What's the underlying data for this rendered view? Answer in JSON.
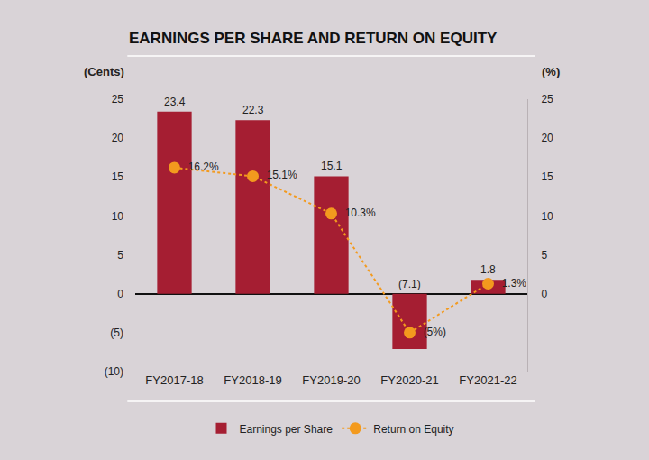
{
  "chart_data": {
    "type": "bar",
    "title": "EARNINGS PER SHARE AND RETURN ON EQUITY",
    "y_label": "(Cents)",
    "y2_label": "(%)",
    "categories": [
      "FY2017-18",
      "FY2018-19",
      "FY2019-20",
      "FY2020-21",
      "FY2021-22"
    ],
    "series": [
      {
        "name": "Earnings per Share",
        "type": "bar",
        "color": "#a51e32",
        "values": [
          23.4,
          22.3,
          15.1,
          -7.1,
          1.8
        ],
        "value_labels": [
          "23.4",
          "22.3",
          "15.1",
          "(7.1)",
          "1.8"
        ]
      },
      {
        "name": "Return on Equity",
        "type": "line",
        "axis": "y2",
        "color": "#f39a1e",
        "marker": "circle",
        "line_style": "dotted",
        "values": [
          16.2,
          15.1,
          10.3,
          -5,
          1.3
        ],
        "value_labels": [
          "16.2%",
          "15.1%",
          "10.3%",
          "(5%)",
          "1.3%"
        ]
      }
    ],
    "ylim": [
      -10,
      25
    ],
    "yticks": [
      {
        "value": -10,
        "label": "(10)"
      },
      {
        "value": -5,
        "label": "(5)"
      },
      0,
      5,
      10,
      15,
      20,
      25
    ],
    "y2lim": [
      -10,
      25
    ],
    "y2ticks": [
      0,
      5,
      10,
      15,
      20,
      25
    ],
    "data_labels": true,
    "grid": false,
    "legend": "bottom"
  }
}
